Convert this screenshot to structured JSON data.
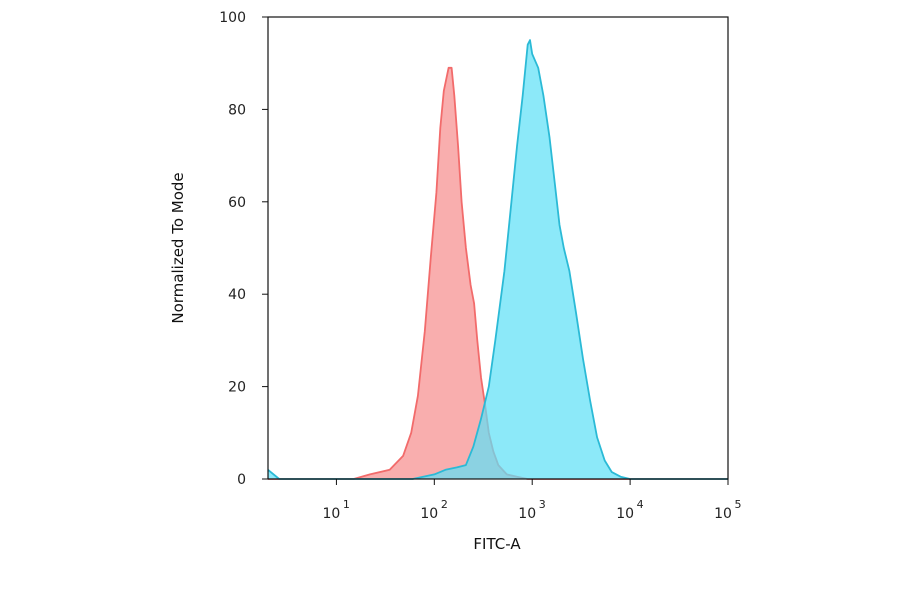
{
  "chart_data": {
    "type": "area",
    "title": "",
    "xlabel": "FITC-A",
    "ylabel": "Normalized To Mode",
    "xscale": "log",
    "xlim": [
      2,
      100000
    ],
    "ylim": [
      0,
      100
    ],
    "grid": false,
    "legend": "none",
    "yticks": [
      0,
      20,
      40,
      60,
      80,
      100
    ],
    "xticks": [
      {
        "value": 10,
        "base": "10",
        "exp": "1"
      },
      {
        "value": 100,
        "base": "10",
        "exp": "2"
      },
      {
        "value": 1000,
        "base": "10",
        "exp": "3"
      },
      {
        "value": 10000,
        "base": "10",
        "exp": "4"
      },
      {
        "value": 100000,
        "base": "10",
        "exp": "5"
      }
    ],
    "series": [
      {
        "color": "#f26b6b",
        "fill": "#f78f8f",
        "points": [
          [
            2,
            0
          ],
          [
            15,
            0
          ],
          [
            22,
            1
          ],
          [
            35,
            2
          ],
          [
            48,
            5
          ],
          [
            58,
            10
          ],
          [
            68,
            18
          ],
          [
            80,
            32
          ],
          [
            92,
            48
          ],
          [
            105,
            62
          ],
          [
            115,
            76
          ],
          [
            125,
            84
          ],
          [
            140,
            89
          ],
          [
            150,
            89
          ],
          [
            160,
            83
          ],
          [
            175,
            72
          ],
          [
            190,
            60
          ],
          [
            210,
            50
          ],
          [
            235,
            42
          ],
          [
            255,
            38
          ],
          [
            275,
            30
          ],
          [
            300,
            22
          ],
          [
            330,
            16
          ],
          [
            360,
            10
          ],
          [
            400,
            6
          ],
          [
            450,
            3
          ],
          [
            550,
            1
          ],
          [
            700,
            0.5
          ],
          [
            900,
            0
          ],
          [
            100000,
            0
          ]
        ]
      },
      {
        "color": "#2bbad6",
        "fill": "#5fe0f7",
        "points": [
          [
            2,
            2
          ],
          [
            2.6,
            0
          ],
          [
            60,
            0
          ],
          [
            100,
            1
          ],
          [
            130,
            2
          ],
          [
            170,
            2.5
          ],
          [
            210,
            3
          ],
          [
            250,
            7
          ],
          [
            300,
            13
          ],
          [
            360,
            20
          ],
          [
            420,
            30
          ],
          [
            520,
            45
          ],
          [
            600,
            58
          ],
          [
            700,
            72
          ],
          [
            800,
            83
          ],
          [
            900,
            94
          ],
          [
            950,
            95
          ],
          [
            1000,
            92
          ],
          [
            1150,
            89
          ],
          [
            1300,
            83
          ],
          [
            1500,
            74
          ],
          [
            1700,
            64
          ],
          [
            1900,
            55
          ],
          [
            2100,
            50
          ],
          [
            2400,
            45
          ],
          [
            2800,
            36
          ],
          [
            3300,
            26
          ],
          [
            3900,
            17
          ],
          [
            4600,
            9
          ],
          [
            5500,
            4
          ],
          [
            6500,
            1.5
          ],
          [
            8000,
            0.5
          ],
          [
            10000,
            0
          ],
          [
            100000,
            0
          ]
        ]
      }
    ]
  }
}
